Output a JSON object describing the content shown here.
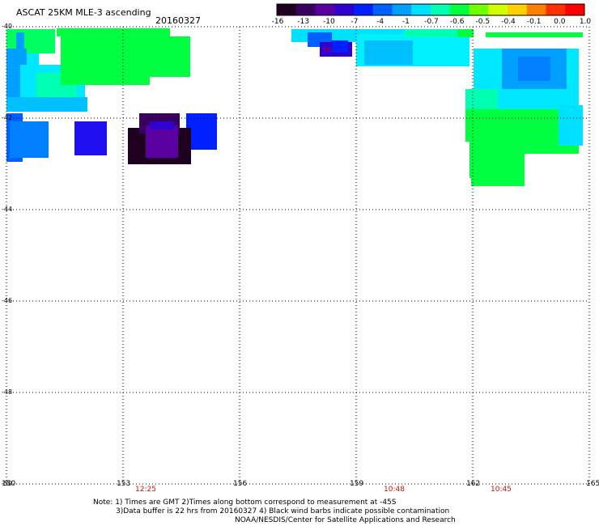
{
  "header": {
    "title": "ASCAT 25KM MLE-3 ascending",
    "date": "20160327"
  },
  "colorbar": {
    "labels": [
      "-16",
      "-13",
      "-10",
      "-7",
      "-4",
      "-1",
      "-0.7",
      "-0.6",
      "-0.5",
      "-0.4",
      "-0.1",
      "0.0",
      "1.0"
    ],
    "colors": [
      "#200020",
      "#3a0060",
      "#5a00a0",
      "#3000d0",
      "#0020ff",
      "#0060ff",
      "#00a0ff",
      "#00e0ff",
      "#00ffb0",
      "#00ff40",
      "#70ff00",
      "#d0ff00",
      "#ffd000",
      "#ff8000",
      "#ff3000",
      "#ff0000"
    ]
  },
  "map": {
    "lat_labels": [
      "-40",
      "-42",
      "-44",
      "-46",
      "-48",
      "-50"
    ],
    "lon_labels": [
      "150",
      "153",
      "156",
      "159",
      "162",
      "165"
    ],
    "pass_times": [
      "12:25",
      "10:48",
      "10:45"
    ],
    "gridlines": true
  },
  "notes": {
    "line1": "Note: 1) Times are GMT 2)Times along bottom correspond to measurement at -45S",
    "line2": "3)Data buffer is 22 hrs from 20160327 4) Black wind barbs indicate possible contamination",
    "line3": "NOAA/NESDIS/Center for Satellite Applications and Research"
  }
}
